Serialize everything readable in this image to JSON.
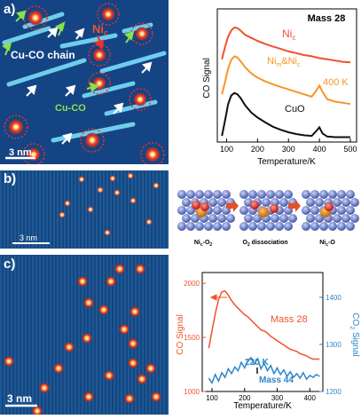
{
  "panel_a": {
    "label": "a)",
    "annotations": {
      "nic": "Ni",
      "nic_sub": "c",
      "chain": "Cu-CO chain",
      "cuco": "Cu-CO"
    },
    "scale": "3 nm"
  },
  "panel_b": {
    "label": "b)",
    "scale": "3 nm",
    "captions": [
      "Ni",
      "O dissociation",
      "Ni"
    ],
    "caption_parts": {
      "nic_o2": [
        "Ni",
        "c",
        "-O",
        "2"
      ],
      "o2_diss": [
        "O",
        "2",
        " dissociation"
      ],
      "nic_o": [
        "Ni",
        "c",
        "-O"
      ]
    }
  },
  "panel_c": {
    "label": "c)",
    "scale": "3 nm"
  },
  "chart_data": [
    {
      "type": "line",
      "title": "Mass 28",
      "xlabel": "Temperature/K",
      "ylabel": "CO Signal",
      "xlim": [
        70,
        520
      ],
      "xticks": [
        100,
        200,
        300,
        400,
        500
      ],
      "grid": false,
      "series": [
        {
          "name": "Nic",
          "label_parts": [
            "Ni",
            "c"
          ],
          "color": "#f0522a",
          "x": [
            85,
            95,
            105,
            115,
            125,
            135,
            145,
            160,
            180,
            200,
            225,
            250,
            275,
            300,
            325,
            350,
            375,
            400,
            425,
            450,
            475,
            500
          ],
          "y": [
            1.35,
            1.55,
            1.72,
            1.82,
            1.87,
            1.86,
            1.82,
            1.75,
            1.7,
            1.65,
            1.6,
            1.56,
            1.52,
            1.48,
            1.45,
            1.42,
            1.4,
            1.37,
            1.35,
            1.33,
            1.31,
            1.3
          ]
        },
        {
          "name": "Nim&Nic",
          "label_parts": [
            "Ni",
            "m",
            "&Ni",
            "c"
          ],
          "color": "#f7962a",
          "x": [
            85,
            95,
            105,
            115,
            125,
            135,
            145,
            160,
            180,
            200,
            225,
            250,
            275,
            300,
            325,
            350,
            375,
            390,
            400,
            410,
            425,
            450,
            475,
            500
          ],
          "y": [
            0.78,
            0.98,
            1.2,
            1.34,
            1.4,
            1.38,
            1.32,
            1.22,
            1.12,
            1.05,
            0.99,
            0.94,
            0.9,
            0.86,
            0.82,
            0.78,
            0.74,
            0.84,
            0.92,
            0.82,
            0.7,
            0.66,
            0.64,
            0.62
          ]
        },
        {
          "name": "CuO",
          "color": "#111111",
          "x": [
            85,
            95,
            105,
            115,
            125,
            135,
            145,
            160,
            180,
            200,
            225,
            250,
            275,
            300,
            325,
            350,
            375,
            390,
            400,
            410,
            425,
            450,
            475,
            500
          ],
          "y": [
            0.1,
            0.35,
            0.62,
            0.76,
            0.8,
            0.78,
            0.72,
            0.6,
            0.48,
            0.4,
            0.32,
            0.25,
            0.2,
            0.16,
            0.13,
            0.11,
            0.1,
            0.18,
            0.24,
            0.14,
            0.09,
            0.08,
            0.08,
            0.08
          ]
        }
      ],
      "annotations": [
        "400 K"
      ]
    },
    {
      "type": "line",
      "xlabel": "Temperature/K",
      "ylabel": "CO Signal",
      "y2label": "CO2 Signal",
      "y2label_parts": [
        "CO",
        "2",
        " Signal"
      ],
      "xlim": [
        70,
        440
      ],
      "ylim": [
        1000,
        2100
      ],
      "y2lim": [
        1200,
        1440
      ],
      "xticks": [
        100,
        200,
        300,
        400
      ],
      "yticks": [
        1000,
        1500,
        2000
      ],
      "y2ticks": [
        1200,
        1300,
        1400
      ],
      "grid": false,
      "series": [
        {
          "name": "Mass 28",
          "axis": "left",
          "color": "#f0522a",
          "x": [
            90,
            100,
            110,
            120,
            130,
            140,
            150,
            160,
            170,
            180,
            190,
            200,
            210,
            220,
            230,
            240,
            250,
            260,
            270,
            280,
            290,
            300,
            310,
            320,
            330,
            340,
            350,
            360,
            370,
            380,
            390,
            400,
            410,
            420,
            430
          ],
          "y": [
            1400,
            1560,
            1720,
            1850,
            1920,
            1930,
            1890,
            1840,
            1800,
            1770,
            1740,
            1710,
            1690,
            1660,
            1630,
            1600,
            1570,
            1560,
            1540,
            1510,
            1490,
            1470,
            1450,
            1430,
            1410,
            1390,
            1380,
            1370,
            1350,
            1340,
            1330,
            1310,
            1300,
            1300,
            1300
          ]
        },
        {
          "name": "Mass 44",
          "axis": "right",
          "color": "#2f86c8",
          "x": [
            90,
            100,
            110,
            120,
            130,
            140,
            150,
            160,
            170,
            180,
            190,
            200,
            210,
            220,
            230,
            240,
            250,
            260,
            270,
            280,
            290,
            300,
            310,
            320,
            330,
            340,
            350,
            360,
            370,
            380,
            390,
            400,
            410,
            420,
            430
          ],
          "y": [
            1228,
            1218,
            1236,
            1222,
            1240,
            1230,
            1248,
            1238,
            1252,
            1244,
            1262,
            1250,
            1266,
            1272,
            1258,
            1270,
            1248,
            1260,
            1244,
            1255,
            1238,
            1250,
            1236,
            1246,
            1232,
            1242,
            1230,
            1238,
            1228,
            1240,
            1226,
            1234,
            1230,
            1236,
            1232
          ]
        }
      ],
      "annotations": [
        "220 K"
      ]
    }
  ]
}
